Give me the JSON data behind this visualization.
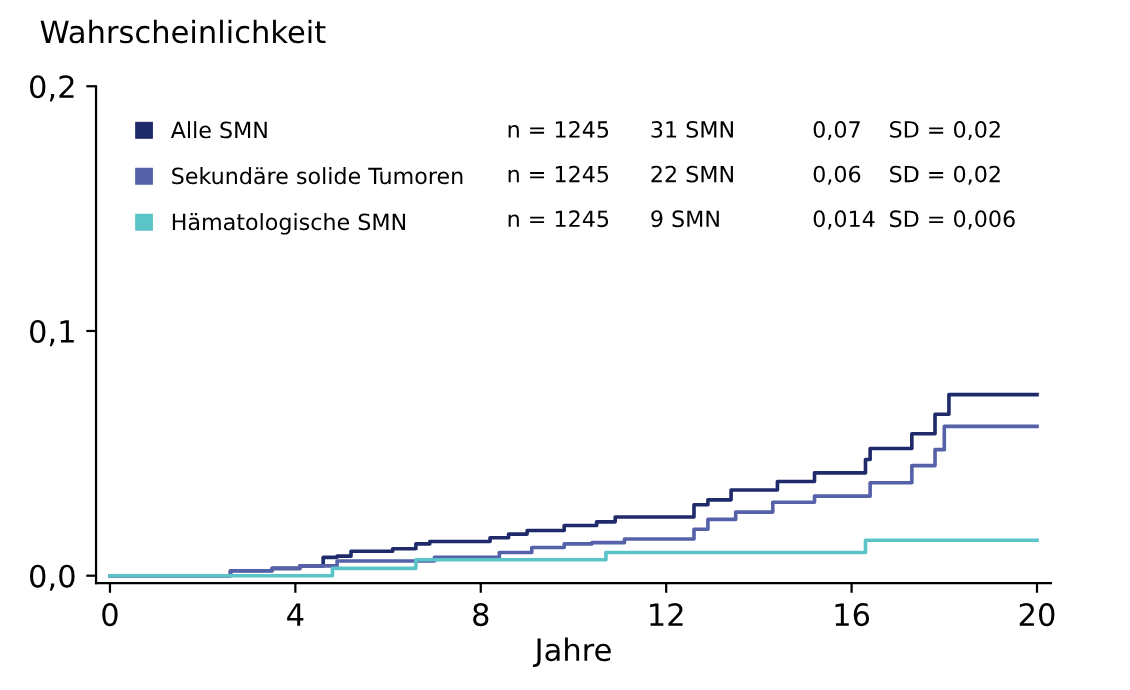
{
  "chart_data": {
    "type": "step",
    "ylabel": "Wahrscheinlichkeit",
    "xlabel": "Jahre",
    "xlim": [
      -0.3,
      20.3
    ],
    "xticks": [
      0,
      4,
      8,
      12,
      16,
      20
    ],
    "ylim": [
      -0.003,
      0.2
    ],
    "yticks": [
      {
        "value": 0,
        "label": "0,0"
      },
      {
        "value": 0.1,
        "label": "0,1"
      },
      {
        "value": 0.2,
        "label": "0,2"
      }
    ],
    "grid": false,
    "legend": "top left",
    "marker": "none",
    "line_style": "solid",
    "series": [
      {
        "name": "Alle SMN",
        "color": "#1f2a6b",
        "x": [
          0,
          2.6,
          3.5,
          4.1,
          4.6,
          4.9,
          5.2,
          6.1,
          6.6,
          6.9,
          8.2,
          8.6,
          9.0,
          9.8,
          10.5,
          10.9,
          12.6,
          12.9,
          13.4,
          14.4,
          15.2,
          16.3,
          16.4,
          17.3,
          17.8,
          18.1,
          20
        ],
        "values": [
          0,
          0.002,
          0.003,
          0.004,
          0.0075,
          0.008,
          0.01,
          0.011,
          0.013,
          0.014,
          0.0155,
          0.017,
          0.0185,
          0.0205,
          0.022,
          0.024,
          0.029,
          0.031,
          0.035,
          0.0385,
          0.042,
          0.0475,
          0.052,
          0.058,
          0.066,
          0.074,
          0.074
        ]
      },
      {
        "name": "Sekundäre solide Tumoren",
        "color": "#5561a8",
        "x": [
          0,
          2.6,
          3.5,
          4.1,
          4.9,
          7.0,
          8.4,
          9.1,
          9.8,
          10.4,
          11.1,
          12.6,
          12.9,
          13.5,
          14.3,
          15.2,
          16.4,
          17.3,
          17.8,
          18.0,
          20
        ],
        "values": [
          0,
          0.002,
          0.003,
          0.004,
          0.006,
          0.0075,
          0.0095,
          0.0115,
          0.013,
          0.0135,
          0.015,
          0.019,
          0.023,
          0.026,
          0.03,
          0.0325,
          0.038,
          0.045,
          0.0515,
          0.061,
          0.061
        ]
      },
      {
        "name": "Hämatologische SMN",
        "color": "#5bc4c8",
        "x": [
          0,
          4.8,
          6.6,
          10.7,
          16.3,
          20
        ],
        "values": [
          0,
          0.003,
          0.0065,
          0.0095,
          0.0145,
          0.0145
        ]
      }
    ],
    "annotations": [
      "n = 1245",
      "31 SMN",
      "0,07",
      "SD = 0,02",
      "n = 1245",
      "22 SMN",
      "0,06",
      "SD = 0,02",
      "n = 1245",
      "9 SMN",
      "0,014",
      "SD = 0,006"
    ]
  }
}
